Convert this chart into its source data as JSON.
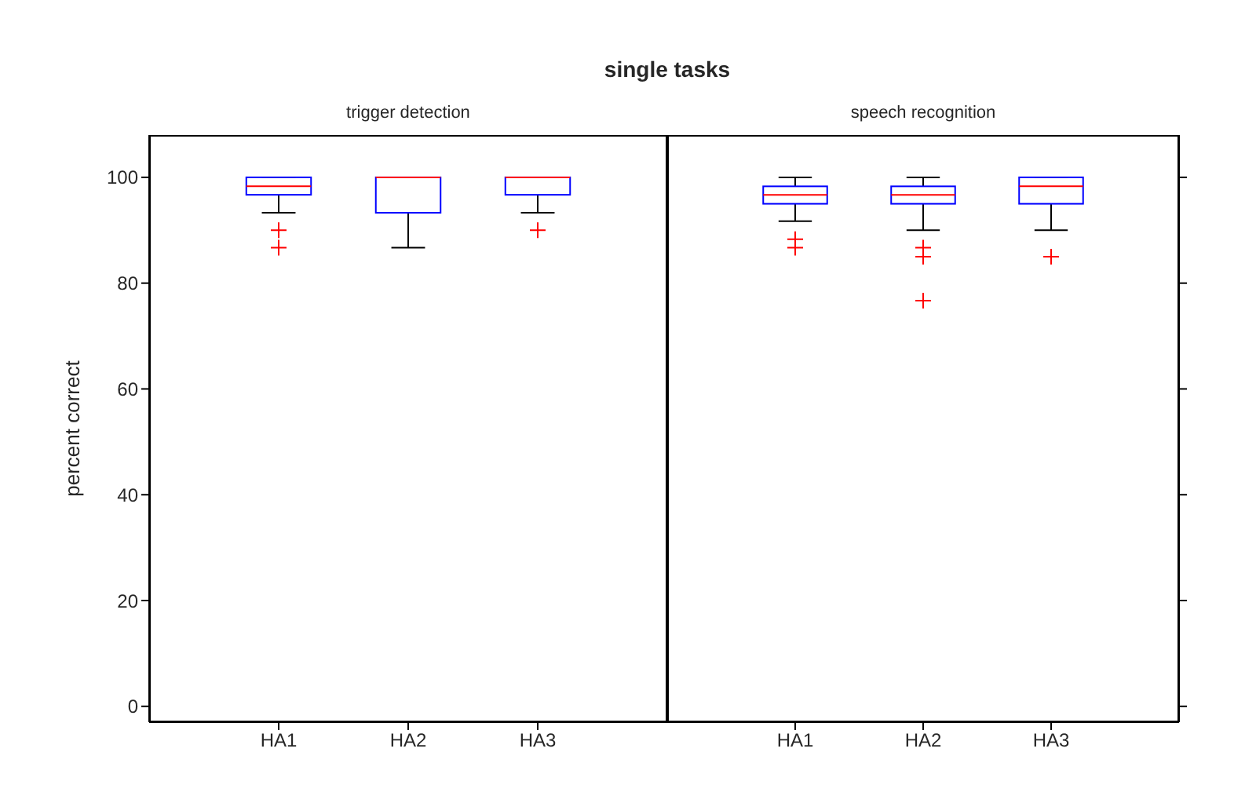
{
  "chart_data": [
    {
      "type": "box",
      "title": "single tasks",
      "subtitle": "trigger detection",
      "ylabel": "percent correct",
      "categories": [
        "HA1",
        "HA2",
        "HA3"
      ],
      "ylim": [
        -3,
        108
      ],
      "yticks": [
        0,
        20,
        40,
        60,
        80,
        100
      ],
      "series": [
        {
          "color": "#0000ff",
          "boxes": [
            {
              "low": 93.3,
              "q1": 96.7,
              "median": 98.3,
              "q3": 100,
              "high": 100,
              "outliers": [
                90,
                86.7
              ]
            },
            {
              "low": 86.7,
              "q1": 93.3,
              "median": 100,
              "q3": 100,
              "high": 100
            },
            {
              "low": 93.3,
              "q1": 96.7,
              "median": 100,
              "q3": 100,
              "high": 100,
              "outliers": [
                90
              ]
            }
          ]
        }
      ]
    },
    {
      "type": "box",
      "subtitle": "speech recognition",
      "categories": [
        "HA1",
        "HA2",
        "HA3"
      ],
      "ylim": [
        -3,
        108
      ],
      "yticks": [
        0,
        20,
        40,
        60,
        80,
        100
      ],
      "tick_labels": "x",
      "series": [
        {
          "color": "#0000ff",
          "boxes": [
            {
              "low": 91.7,
              "q1": 95,
              "median": 96.7,
              "q3": 98.3,
              "high": 100,
              "outliers": [
                88.3,
                86.7
              ]
            },
            {
              "low": 90,
              "q1": 95,
              "median": 96.7,
              "q3": 98.3,
              "high": 100,
              "outliers": [
                86.7,
                85,
                76.7
              ]
            },
            {
              "low": 90,
              "q1": 95,
              "median": 98.3,
              "q3": 100,
              "high": 100,
              "outliers": [
                85
              ]
            }
          ]
        }
      ]
    }
  ]
}
